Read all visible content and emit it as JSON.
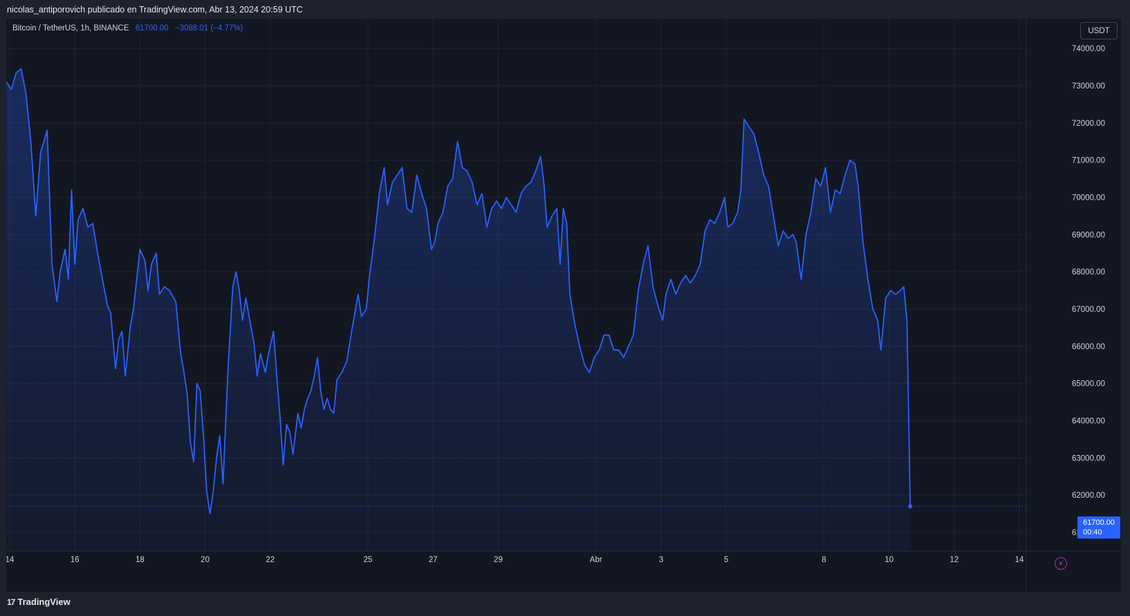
{
  "header": {
    "publisher_line": "nicolas_antiporovich publicado en TradingView.com, Abr 13, 2024 20:59 UTC"
  },
  "legend": {
    "symbol": "Bitcoin / TetherUS, 1h, BINANCE",
    "last": "61700.00",
    "change": "−3088.01 (−4.77%)"
  },
  "currency_button": "USDT",
  "price_badge": {
    "price": "61700.00",
    "countdown": "00:40"
  },
  "footer": {
    "logo_glyph": "17",
    "brand": "TradingView"
  },
  "icons": {
    "alert": "lightning-icon",
    "logo": "tradingview-logo-icon"
  },
  "colors": {
    "line": "#2962ff",
    "background": "#131722",
    "frame": "#1e222d",
    "grid": "#2a2e39",
    "axis_text": "#d1d4dc"
  },
  "chart_data": {
    "type": "area",
    "title": "Bitcoin / TetherUS, 1h, BINANCE",
    "xlabel": "",
    "ylabel": "",
    "y_ticks": [
      "61000.00",
      "62000.00",
      "63000.00",
      "64000.00",
      "65000.00",
      "66000.00",
      "67000.00",
      "68000.00",
      "69000.00",
      "70000.00",
      "71000.00",
      "72000.00",
      "73000.00",
      "74000.00"
    ],
    "ylim": [
      60500,
      74800
    ],
    "x_ticks": [
      {
        "label": "14",
        "day": 0
      },
      {
        "label": "16",
        "day": 2
      },
      {
        "label": "18",
        "day": 4
      },
      {
        "label": "20",
        "day": 6
      },
      {
        "label": "22",
        "day": 8
      },
      {
        "label": "25",
        "day": 11
      },
      {
        "label": "27",
        "day": 13
      },
      {
        "label": "29",
        "day": 15
      },
      {
        "label": "Abr",
        "day": 18
      },
      {
        "label": "3",
        "day": 20
      },
      {
        "label": "5",
        "day": 22
      },
      {
        "label": "8",
        "day": 25
      },
      {
        "label": "10",
        "day": 27
      },
      {
        "label": "12",
        "day": 29
      },
      {
        "label": "14",
        "day": 31
      }
    ],
    "xlim": [
      0,
      31
    ],
    "last_value": 61700,
    "grid": true,
    "series": [
      {
        "values": [
          [
            -0.1,
            73100
          ],
          [
            0.05,
            72900
          ],
          [
            0.2,
            73350
          ],
          [
            0.35,
            73450
          ],
          [
            0.5,
            72800
          ],
          [
            0.65,
            71500
          ],
          [
            0.8,
            69500
          ],
          [
            0.95,
            71200
          ],
          [
            1.15,
            71800
          ],
          [
            1.3,
            68200
          ],
          [
            1.45,
            67200
          ],
          [
            1.55,
            68000
          ],
          [
            1.7,
            68600
          ],
          [
            1.8,
            67800
          ],
          [
            1.9,
            70200
          ],
          [
            2.0,
            68200
          ],
          [
            2.1,
            69400
          ],
          [
            2.25,
            69700
          ],
          [
            2.4,
            69200
          ],
          [
            2.55,
            69300
          ],
          [
            2.7,
            68500
          ],
          [
            2.85,
            67800
          ],
          [
            3.0,
            67100
          ],
          [
            3.1,
            66900
          ],
          [
            3.25,
            65400
          ],
          [
            3.35,
            66200
          ],
          [
            3.45,
            66400
          ],
          [
            3.55,
            65200
          ],
          [
            3.7,
            66500
          ],
          [
            3.8,
            67000
          ],
          [
            3.9,
            67800
          ],
          [
            4.0,
            68600
          ],
          [
            4.15,
            68300
          ],
          [
            4.25,
            67500
          ],
          [
            4.35,
            68200
          ],
          [
            4.5,
            68500
          ],
          [
            4.6,
            67400
          ],
          [
            4.75,
            67600
          ],
          [
            4.9,
            67500
          ],
          [
            5.1,
            67200
          ],
          [
            5.25,
            65800
          ],
          [
            5.35,
            65300
          ],
          [
            5.45,
            64700
          ],
          [
            5.55,
            63400
          ],
          [
            5.65,
            62900
          ],
          [
            5.75,
            65000
          ],
          [
            5.85,
            64800
          ],
          [
            5.95,
            63600
          ],
          [
            6.05,
            62100
          ],
          [
            6.15,
            61500
          ],
          [
            6.25,
            62100
          ],
          [
            6.35,
            63000
          ],
          [
            6.45,
            63600
          ],
          [
            6.55,
            62300
          ],
          [
            6.7,
            65300
          ],
          [
            6.85,
            67600
          ],
          [
            6.95,
            68000
          ],
          [
            7.05,
            67500
          ],
          [
            7.15,
            66700
          ],
          [
            7.25,
            67300
          ],
          [
            7.35,
            66800
          ],
          [
            7.5,
            66100
          ],
          [
            7.6,
            65200
          ],
          [
            7.7,
            65800
          ],
          [
            7.85,
            65300
          ],
          [
            7.95,
            65800
          ],
          [
            8.1,
            66400
          ],
          [
            8.2,
            65200
          ],
          [
            8.3,
            64100
          ],
          [
            8.4,
            62800
          ],
          [
            8.5,
            63900
          ],
          [
            8.6,
            63700
          ],
          [
            8.7,
            63100
          ],
          [
            8.85,
            64200
          ],
          [
            8.95,
            63800
          ],
          [
            9.05,
            64300
          ],
          [
            9.15,
            64600
          ],
          [
            9.25,
            64800
          ],
          [
            9.35,
            65200
          ],
          [
            9.45,
            65700
          ],
          [
            9.55,
            64800
          ],
          [
            9.65,
            64300
          ],
          [
            9.75,
            64600
          ],
          [
            9.85,
            64300
          ],
          [
            9.95,
            64200
          ],
          [
            10.05,
            65100
          ],
          [
            10.2,
            65300
          ],
          [
            10.35,
            65600
          ],
          [
            10.5,
            66400
          ],
          [
            10.6,
            66900
          ],
          [
            10.7,
            67400
          ],
          [
            10.8,
            66800
          ],
          [
            10.95,
            67000
          ],
          [
            11.05,
            67900
          ],
          [
            11.2,
            68900
          ],
          [
            11.35,
            70100
          ],
          [
            11.5,
            70800
          ],
          [
            11.6,
            69800
          ],
          [
            11.75,
            70400
          ],
          [
            11.9,
            70600
          ],
          [
            12.05,
            70800
          ],
          [
            12.2,
            69700
          ],
          [
            12.35,
            69600
          ],
          [
            12.5,
            70600
          ],
          [
            12.65,
            70100
          ],
          [
            12.8,
            69700
          ],
          [
            12.95,
            68600
          ],
          [
            13.05,
            68800
          ],
          [
            13.15,
            69300
          ],
          [
            13.3,
            69600
          ],
          [
            13.45,
            70300
          ],
          [
            13.6,
            70500
          ],
          [
            13.75,
            71500
          ],
          [
            13.9,
            70800
          ],
          [
            14.05,
            70700
          ],
          [
            14.2,
            70400
          ],
          [
            14.35,
            69800
          ],
          [
            14.5,
            70100
          ],
          [
            14.65,
            69200
          ],
          [
            14.8,
            69700
          ],
          [
            14.95,
            69900
          ],
          [
            15.1,
            69700
          ],
          [
            15.25,
            70000
          ],
          [
            15.4,
            69800
          ],
          [
            15.55,
            69600
          ],
          [
            15.7,
            70100
          ],
          [
            15.85,
            70300
          ],
          [
            16.0,
            70400
          ],
          [
            16.15,
            70700
          ],
          [
            16.3,
            71100
          ],
          [
            16.4,
            70400
          ],
          [
            16.5,
            69200
          ],
          [
            16.65,
            69500
          ],
          [
            16.8,
            69700
          ],
          [
            16.9,
            68200
          ],
          [
            17.0,
            69700
          ],
          [
            17.1,
            69300
          ],
          [
            17.2,
            67400
          ],
          [
            17.35,
            66600
          ],
          [
            17.5,
            66000
          ],
          [
            17.65,
            65500
          ],
          [
            17.8,
            65300
          ],
          [
            17.95,
            65700
          ],
          [
            18.1,
            65900
          ],
          [
            18.25,
            66300
          ],
          [
            18.4,
            66300
          ],
          [
            18.55,
            65900
          ],
          [
            18.7,
            65900
          ],
          [
            18.85,
            65700
          ],
          [
            19.0,
            66000
          ],
          [
            19.15,
            66300
          ],
          [
            19.3,
            67500
          ],
          [
            19.45,
            68200
          ],
          [
            19.6,
            68700
          ],
          [
            19.75,
            67600
          ],
          [
            19.9,
            67100
          ],
          [
            20.05,
            66700
          ],
          [
            20.15,
            67400
          ],
          [
            20.3,
            67800
          ],
          [
            20.45,
            67400
          ],
          [
            20.6,
            67700
          ],
          [
            20.75,
            67900
          ],
          [
            20.9,
            67700
          ],
          [
            21.05,
            67900
          ],
          [
            21.2,
            68200
          ],
          [
            21.35,
            69100
          ],
          [
            21.5,
            69400
          ],
          [
            21.65,
            69300
          ],
          [
            21.8,
            69600
          ],
          [
            21.95,
            70000
          ],
          [
            22.05,
            69200
          ],
          [
            22.2,
            69300
          ],
          [
            22.35,
            69600
          ],
          [
            22.45,
            70200
          ],
          [
            22.55,
            72100
          ],
          [
            22.7,
            71900
          ],
          [
            22.85,
            71700
          ],
          [
            23.0,
            71200
          ],
          [
            23.15,
            70600
          ],
          [
            23.3,
            70300
          ],
          [
            23.45,
            69500
          ],
          [
            23.6,
            68700
          ],
          [
            23.75,
            69100
          ],
          [
            23.9,
            68900
          ],
          [
            24.05,
            69000
          ],
          [
            24.15,
            68800
          ],
          [
            24.3,
            67800
          ],
          [
            24.45,
            69000
          ],
          [
            24.6,
            69600
          ],
          [
            24.75,
            70500
          ],
          [
            24.9,
            70300
          ],
          [
            25.05,
            70800
          ],
          [
            25.2,
            69600
          ],
          [
            25.35,
            70200
          ],
          [
            25.5,
            70100
          ],
          [
            25.65,
            70600
          ],
          [
            25.8,
            71000
          ],
          [
            25.95,
            70900
          ],
          [
            26.05,
            70300
          ],
          [
            26.2,
            68800
          ],
          [
            26.35,
            67800
          ],
          [
            26.5,
            67000
          ],
          [
            26.65,
            66700
          ],
          [
            26.75,
            65900
          ],
          [
            26.9,
            67300
          ],
          [
            27.05,
            67500
          ],
          [
            27.2,
            67400
          ],
          [
            27.35,
            67500
          ],
          [
            27.45,
            67600
          ],
          [
            27.55,
            66700
          ],
          [
            27.65,
            61700
          ]
        ]
      }
    ]
  }
}
